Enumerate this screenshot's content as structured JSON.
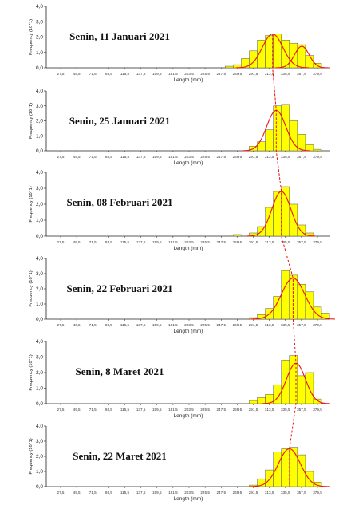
{
  "chart_data": [
    {
      "type": "bar",
      "title": "Senin, 11 Januari 2021",
      "xlabel": "Length (mm)",
      "ylabel": "Frequency (10^1)",
      "ylim": [
        0,
        4
      ],
      "yticks": [
        "0,0",
        "1,0",
        "2,0",
        "3,0",
        "4,0"
      ],
      "x_ticks": [
        "27,5",
        "49,5",
        "71,5",
        "93,5",
        "115,5",
        "137,5",
        "159,5",
        "181,5",
        "203,5",
        "225,5",
        "247,5",
        "269,5",
        "291,5",
        "313,5",
        "335,5",
        "357,5",
        "379,5"
      ],
      "categories": [
        "258,5",
        "269,5",
        "280,5",
        "291,5",
        "302,5",
        "313,5",
        "324,5",
        "335,5",
        "346,5",
        "357,5",
        "368,5",
        "379,5"
      ],
      "values": [
        0.1,
        0.2,
        0.6,
        1.1,
        1.8,
        2.1,
        2.2,
        1.8,
        1.6,
        1.5,
        0.8,
        0.3
      ],
      "curves": [
        {
          "mean": 318,
          "sd": 14,
          "peak": 2.2
        },
        {
          "mean": 358,
          "sd": 10,
          "peak": 1.4
        }
      ]
    },
    {
      "type": "bar",
      "title": "Senin, 25 Januari 2021",
      "xlabel": "Length (mm)",
      "ylabel": "Frequency (10^1)",
      "ylim": [
        0,
        4
      ],
      "yticks": [
        "0,0",
        "1,0",
        "2,0",
        "3,0",
        "4,0"
      ],
      "x_ticks": [
        "27,5",
        "49,5",
        "71,5",
        "93,5",
        "115,5",
        "137,5",
        "159,5",
        "181,5",
        "203,5",
        "225,5",
        "247,5",
        "269,5",
        "291,5",
        "313,5",
        "335,5",
        "357,5",
        "379,5"
      ],
      "categories": [
        "291,5",
        "302,5",
        "313,5",
        "324,5",
        "335,5",
        "346,5",
        "357,5",
        "368,5",
        "379,5"
      ],
      "values": [
        0.3,
        0.6,
        1.4,
        3.0,
        3.1,
        2.0,
        1.1,
        0.4,
        0.1
      ],
      "curves": [
        {
          "mean": 323,
          "sd": 13,
          "peak": 2.7
        }
      ]
    },
    {
      "type": "bar",
      "title": "Senin, 08 Februari 2021",
      "xlabel": "Length (mm)",
      "ylabel": "Frequency (10^1)",
      "ylim": [
        0,
        4
      ],
      "yticks": [
        "0,0",
        "1,0",
        "2,0",
        "3,0",
        "4,0"
      ],
      "x_ticks": [
        "27,5",
        "49,5",
        "71,5",
        "93,5",
        "115,5",
        "137,5",
        "159,5",
        "181,5",
        "203,5",
        "225,5",
        "247,5",
        "269,5",
        "291,5",
        "313,5",
        "335,5",
        "357,5",
        "379,5"
      ],
      "categories": [
        "269,5",
        "291,5",
        "302,5",
        "313,5",
        "324,5",
        "335,5",
        "346,5",
        "357,5",
        "368,5"
      ],
      "values": [
        0.1,
        0.2,
        0.6,
        1.8,
        2.8,
        3.1,
        2.0,
        0.7,
        0.2
      ],
      "curves": [
        {
          "mean": 330,
          "sd": 13,
          "peak": 2.8
        }
      ]
    },
    {
      "type": "bar",
      "title": "Senin, 22 Februari 2021",
      "xlabel": "Length (mm)",
      "ylabel": "Frequency (10^1)",
      "ylim": [
        0,
        4
      ],
      "yticks": [
        "0,0",
        "1,0",
        "2,0",
        "3,0",
        "4,0"
      ],
      "x_ticks": [
        "27,5",
        "49,5",
        "71,5",
        "93,5",
        "115,5",
        "137,5",
        "159,5",
        "181,5",
        "203,5",
        "225,5",
        "247,5",
        "269,5",
        "291,5",
        "313,5",
        "335,5",
        "357,5",
        "379,5"
      ],
      "categories": [
        "291,5",
        "302,5",
        "313,5",
        "324,5",
        "335,5",
        "346,5",
        "357,5",
        "368,5",
        "379,5",
        "390,5"
      ],
      "values": [
        0.1,
        0.3,
        0.7,
        1.5,
        3.2,
        2.9,
        2.3,
        1.8,
        0.8,
        0.4
      ],
      "curves": [
        {
          "mean": 346,
          "sd": 16,
          "peak": 2.7
        }
      ]
    },
    {
      "type": "bar",
      "title": "Senin, 8 Maret 2021",
      "xlabel": "Length (mm)",
      "ylabel": "Frequency (10^1)",
      "ylim": [
        0,
        4
      ],
      "yticks": [
        "0,0",
        "1,0",
        "2,0",
        "3,0",
        "4,0"
      ],
      "x_ticks": [
        "27,5",
        "49,5",
        "71,5",
        "93,5",
        "115,5",
        "137,5",
        "159,5",
        "181,5",
        "203,5",
        "225,5",
        "247,5",
        "269,5",
        "291,5",
        "313,5",
        "335,5",
        "357,5",
        "379,5"
      ],
      "categories": [
        "291,5",
        "302,5",
        "313,5",
        "324,5",
        "335,5",
        "346,5",
        "357,5",
        "368,5",
        "379,5"
      ],
      "values": [
        0.2,
        0.4,
        0.6,
        1.2,
        2.8,
        3.1,
        1.8,
        2.0,
        0.3
      ],
      "curves": [
        {
          "mean": 350,
          "sd": 13,
          "peak": 2.6
        }
      ]
    },
    {
      "type": "bar",
      "title": "Senin, 22 Maret 2021",
      "xlabel": "Length (mm)",
      "ylabel": "Frequency (10^1)",
      "ylim": [
        0,
        4
      ],
      "yticks": [
        "0,0",
        "1,0",
        "2,0",
        "3,0",
        "4,0"
      ],
      "x_ticks": [
        "27,5",
        "49,5",
        "71,5",
        "93,5",
        "115,5",
        "137,5",
        "159,5",
        "181,5",
        "203,5",
        "225,5",
        "247,5",
        "269,5",
        "291,5",
        "313,5",
        "335,5",
        "357,5",
        "379,5"
      ],
      "categories": [
        "291,5",
        "302,5",
        "313,5",
        "324,5",
        "335,5",
        "346,5",
        "357,5",
        "368,5",
        "379,5"
      ],
      "values": [
        0.1,
        0.5,
        1.1,
        2.3,
        2.5,
        2.6,
        2.1,
        1.0,
        0.3
      ],
      "curves": [
        {
          "mean": 341,
          "sd": 15,
          "peak": 2.5
        }
      ]
    }
  ],
  "colors": {
    "bar_fill": "#ffff00",
    "bar_stroke": "#555555",
    "curve": "#ee1111",
    "axis": "#222222"
  }
}
